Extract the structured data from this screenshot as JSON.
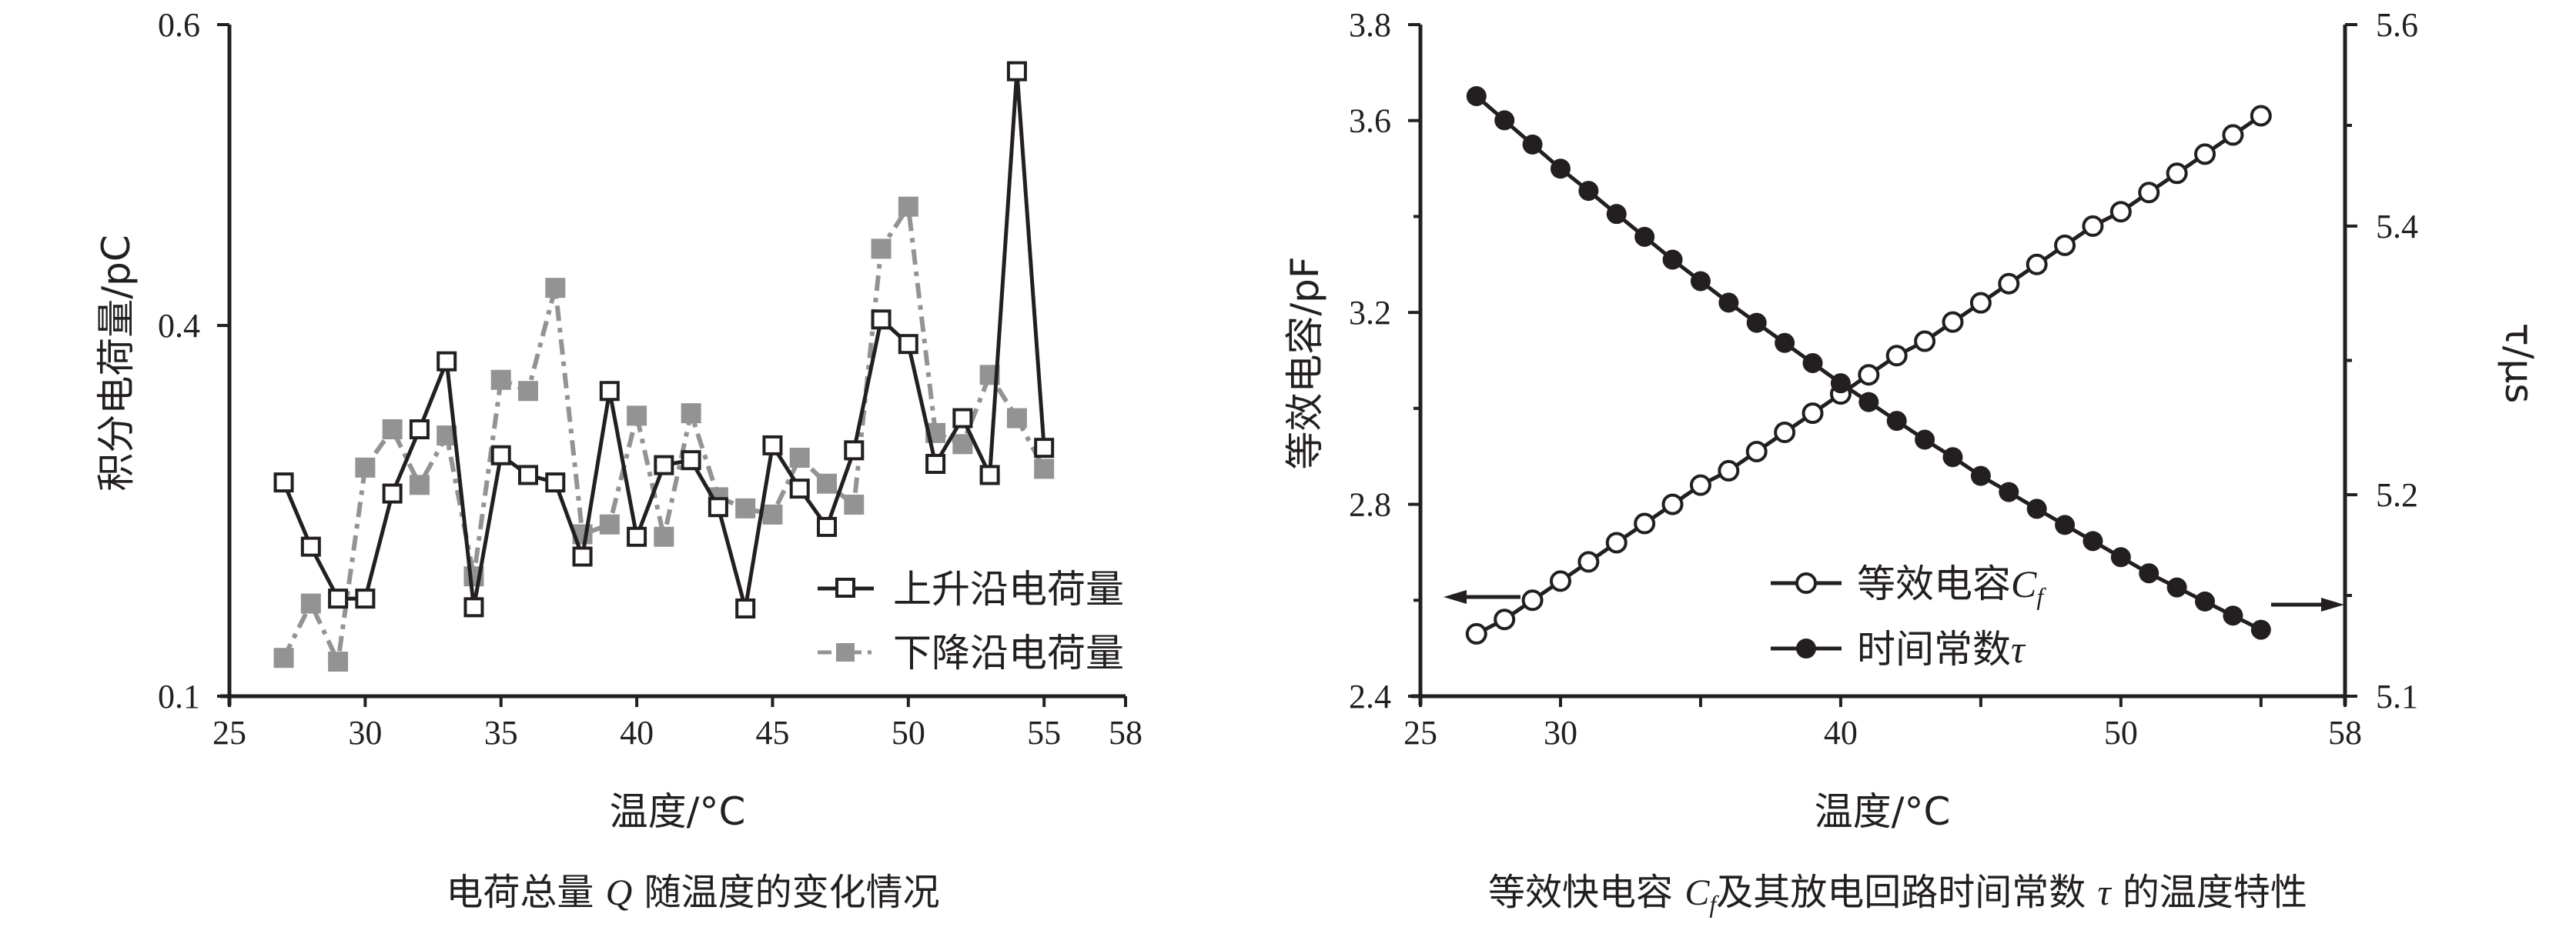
{
  "chart_data": [
    {
      "type": "line",
      "title": "电荷总量 Q 随温度的变化情况",
      "caption_parts": [
        "电荷总量 ",
        "Q",
        " 随温度的变化情况"
      ],
      "xlabel": "温度/°C",
      "ylabel": "积分电荷量/pC",
      "xlim": [
        25,
        58
      ],
      "ylim": [
        0.1,
        0.6
      ],
      "xticks": [
        25,
        30,
        35,
        40,
        45,
        50,
        55,
        58
      ],
      "yticks": [
        0.1,
        0.4,
        0.6
      ],
      "grid": false,
      "legend_position": "bottom-right",
      "x": [
        27,
        28,
        29,
        30,
        31,
        32,
        33,
        34,
        35,
        36,
        37,
        38,
        39,
        40,
        41,
        42,
        43,
        44,
        45,
        46,
        47,
        48,
        49,
        50,
        51,
        52,
        53,
        54,
        55
      ],
      "series": [
        {
          "name": "上升沿电荷量",
          "marker": "open-square",
          "line": "solid",
          "color": "#231f20",
          "values": [
            0.273,
            0.221,
            0.179,
            0.179,
            0.264,
            0.316,
            0.371,
            0.172,
            0.295,
            0.279,
            0.273,
            0.213,
            0.347,
            0.229,
            0.287,
            0.291,
            0.253,
            0.171,
            0.303,
            0.268,
            0.237,
            0.299,
            0.404,
            0.385,
            0.288,
            0.325,
            0.279,
            0.569,
            0.301
          ]
        },
        {
          "name": "下降沿电荷量",
          "marker": "filled-square",
          "line": "dash-dot",
          "color": "#939393",
          "values": [
            0.131,
            0.175,
            0.128,
            0.285,
            0.316,
            0.271,
            0.311,
            0.197,
            0.356,
            0.347,
            0.425,
            0.231,
            0.239,
            0.327,
            0.229,
            0.329,
            0.261,
            0.252,
            0.247,
            0.293,
            0.272,
            0.255,
            0.451,
            0.479,
            0.313,
            0.304,
            0.36,
            0.325,
            0.284
          ]
        }
      ]
    },
    {
      "type": "line",
      "title": "等效快电容 Cf 及其放电回路时间常数 τ 的温度特性",
      "caption_parts": [
        "等效快电容 ",
        "C",
        "f",
        "及其放电回路时间常数 ",
        "τ",
        " 的温度特性"
      ],
      "xlabel": "温度/°C",
      "ylabel": "等效电容/pF",
      "ylabel_right": "τ/μs",
      "xlim": [
        25,
        58
      ],
      "ylim": [
        2.4,
        3.8
      ],
      "ylim_right": [
        5.1,
        5.6
      ],
      "xticks": [
        25,
        30,
        40,
        50,
        58
      ],
      "yticks": [
        2.4,
        2.8,
        3.2,
        3.6,
        3.8
      ],
      "yticks_right": [
        5.1,
        5.2,
        5.4,
        5.6
      ],
      "grid": false,
      "legend_position": "bottom-right",
      "x": [
        27,
        28,
        29,
        30,
        31,
        32,
        33,
        34,
        35,
        36,
        37,
        38,
        39,
        40,
        41,
        42,
        43,
        44,
        45,
        46,
        47,
        48,
        49,
        50,
        51,
        52,
        53,
        54,
        55
      ],
      "series": [
        {
          "name": "等效电容Cf",
          "name_parts": [
            "等效电容",
            "C",
            "f"
          ],
          "axis": "left",
          "marker": "open-circle",
          "color": "#231f20",
          "values": [
            2.53,
            2.56,
            2.6,
            2.64,
            2.68,
            2.72,
            2.76,
            2.8,
            2.84,
            2.87,
            2.91,
            2.95,
            2.99,
            3.03,
            3.07,
            3.11,
            3.14,
            3.18,
            3.22,
            3.26,
            3.3,
            3.34,
            3.38,
            3.41,
            3.45,
            3.49,
            3.53,
            3.57,
            3.61
          ]
        },
        {
          "name": "时间常数τ",
          "name_parts": [
            "时间常数",
            "τ"
          ],
          "axis": "right",
          "marker": "filled-circle",
          "color": "#231f20",
          "values": [
            5.529,
            5.505,
            5.481,
            5.457,
            5.435,
            5.412,
            5.392,
            5.375,
            5.359,
            5.343,
            5.328,
            5.313,
            5.298,
            5.283,
            5.269,
            5.255,
            5.241,
            5.228,
            5.214,
            5.202,
            5.193,
            5.185,
            5.177,
            5.169,
            5.161,
            5.154,
            5.147,
            5.14,
            5.133
          ]
        }
      ],
      "annotations": [
        "left-arrow: Cf uses left axis",
        "right-arrow: τ uses right axis"
      ]
    }
  ]
}
